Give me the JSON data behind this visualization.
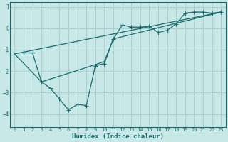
{
  "xlabel": "Humidex (Indice chaleur)",
  "background_color": "#c8e8e8",
  "grid_color": "#a8d0d0",
  "line_color": "#1a6b6b",
  "xlim": [
    -0.5,
    23.5
  ],
  "ylim": [
    -4.6,
    1.2
  ],
  "yticks": [
    1,
    0,
    -1,
    -2,
    -3,
    -4
  ],
  "xticks": [
    0,
    1,
    2,
    3,
    4,
    5,
    6,
    7,
    8,
    9,
    10,
    11,
    12,
    13,
    14,
    15,
    16,
    17,
    18,
    19,
    20,
    21,
    22,
    23
  ],
  "line1_x": [
    1,
    2,
    3,
    4,
    5,
    6,
    7,
    8,
    9,
    10,
    11,
    12,
    13,
    14,
    15,
    16,
    17,
    18,
    19,
    20,
    21,
    22,
    23
  ],
  "line1_y": [
    -1.15,
    -1.15,
    -2.5,
    -2.8,
    -3.3,
    -3.8,
    -3.55,
    -3.6,
    -1.75,
    -1.65,
    -0.5,
    0.15,
    0.05,
    0.05,
    0.1,
    -0.2,
    -0.1,
    0.2,
    0.7,
    0.75,
    0.75,
    0.7,
    0.75
  ],
  "line2_x": [
    0,
    23
  ],
  "line2_y": [
    -1.2,
    0.75
  ],
  "line3_x": [
    0,
    3,
    9,
    10,
    11,
    23
  ],
  "line3_y": [
    -1.2,
    -2.5,
    -1.7,
    -1.55,
    -0.5,
    0.75
  ],
  "markersize": 2.5
}
